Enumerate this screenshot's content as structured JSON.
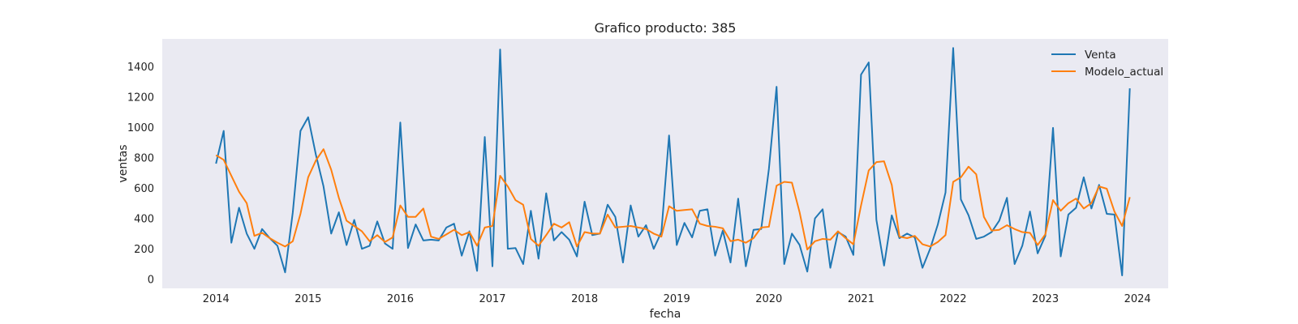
{
  "chart_data": {
    "type": "line",
    "title": "Grafico producto: 385",
    "xlabel": "fecha",
    "ylabel": "ventas",
    "x_start": "2014-01",
    "x_ticks": [
      "2014",
      "2015",
      "2016",
      "2017",
      "2018",
      "2019",
      "2020",
      "2021",
      "2022",
      "2023",
      "2024"
    ],
    "y_ticks": [
      0,
      200,
      400,
      600,
      800,
      1000,
      1200,
      1400
    ],
    "xlim": [
      "2013-06",
      "2024-05"
    ],
    "ylim": [
      -60,
      1580
    ],
    "grid": false,
    "legend_position": "top-right",
    "colors": {
      "plot_background": "#eaeaf2",
      "Venta": "#1f77b4",
      "Modelo_actual": "#ff7f0e"
    },
    "series": [
      {
        "name": "Venta",
        "values": [
          760,
          975,
          240,
          470,
          300,
          200,
          330,
          270,
          220,
          45,
          440,
          975,
          1065,
          820,
          610,
          300,
          440,
          225,
          390,
          200,
          220,
          380,
          235,
          200,
          1030,
          205,
          360,
          255,
          260,
          255,
          340,
          365,
          155,
          315,
          55,
          935,
          85,
          1510,
          200,
          205,
          100,
          450,
          135,
          565,
          255,
          310,
          260,
          150,
          510,
          290,
          300,
          490,
          410,
          110,
          485,
          280,
          355,
          200,
          310,
          945,
          225,
          370,
          275,
          450,
          460,
          155,
          320,
          110,
          530,
          85,
          325,
          330,
          725,
          1265,
          100,
          300,
          225,
          50,
          400,
          460,
          75,
          310,
          280,
          160,
          1345,
          1425,
          390,
          90,
          420,
          270,
          300,
          275,
          75,
          200,
          360,
          570,
          1520,
          525,
          420,
          265,
          280,
          310,
          385,
          535,
          100,
          220,
          445,
          170,
          285,
          995,
          150,
          425,
          470,
          670,
          465,
          620,
          430,
          425,
          25,
          1255
        ]
      },
      {
        "name": "Modelo_actual",
        "values": [
          815,
          785,
          680,
          575,
          500,
          285,
          305,
          270,
          240,
          215,
          250,
          430,
          670,
          780,
          855,
          720,
          535,
          385,
          350,
          315,
          250,
          290,
          245,
          275,
          485,
          410,
          410,
          465,
          280,
          265,
          295,
          325,
          290,
          310,
          220,
          340,
          350,
          680,
          610,
          520,
          490,
          265,
          220,
          290,
          365,
          340,
          375,
          215,
          310,
          300,
          300,
          425,
          340,
          345,
          350,
          340,
          330,
          300,
          280,
          480,
          450,
          455,
          460,
          365,
          350,
          345,
          335,
          250,
          260,
          240,
          270,
          340,
          345,
          615,
          640,
          635,
          440,
          195,
          250,
          265,
          260,
          315,
          270,
          230,
          485,
          715,
          770,
          775,
          620,
          280,
          270,
          285,
          230,
          215,
          245,
          290,
          640,
          670,
          740,
          690,
          410,
          320,
          325,
          355,
          330,
          310,
          305,
          225,
          295,
          520,
          450,
          500,
          530,
          465,
          500,
          610,
          595,
          445,
          350,
          540
        ]
      }
    ]
  }
}
